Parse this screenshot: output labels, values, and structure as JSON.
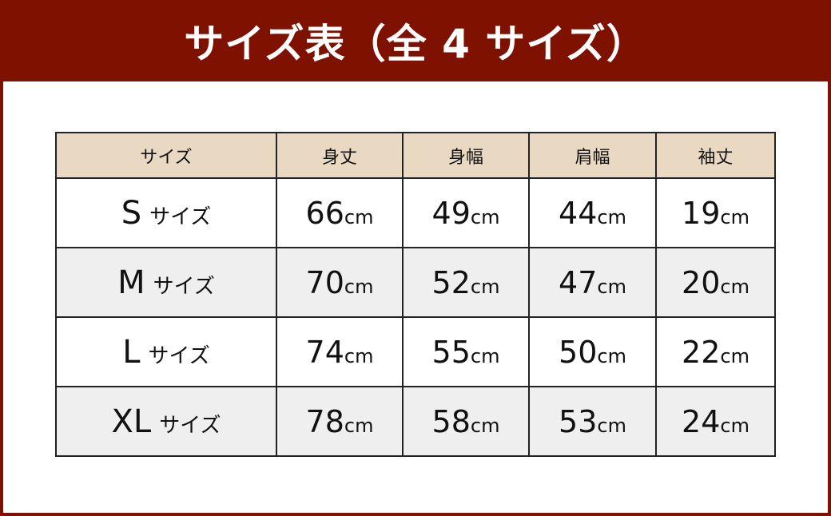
{
  "title": "サイズ表（全 4 サイズ）",
  "colors": {
    "frame": "#7f1100",
    "header_bg": "#ead9c2",
    "alt_row_bg": "#efefef"
  },
  "table": {
    "headers": [
      "サイズ",
      "身丈",
      "身幅",
      "肩幅",
      "袖丈"
    ],
    "size_suffix": "サイズ",
    "unit": "cm",
    "rows": [
      {
        "size": "S",
        "values": [
          "66",
          "49",
          "44",
          "19"
        ]
      },
      {
        "size": "M",
        "values": [
          "70",
          "52",
          "47",
          "20"
        ]
      },
      {
        "size": "L",
        "values": [
          "74",
          "55",
          "50",
          "22"
        ]
      },
      {
        "size": "XL",
        "values": [
          "78",
          "58",
          "53",
          "24"
        ]
      }
    ]
  }
}
